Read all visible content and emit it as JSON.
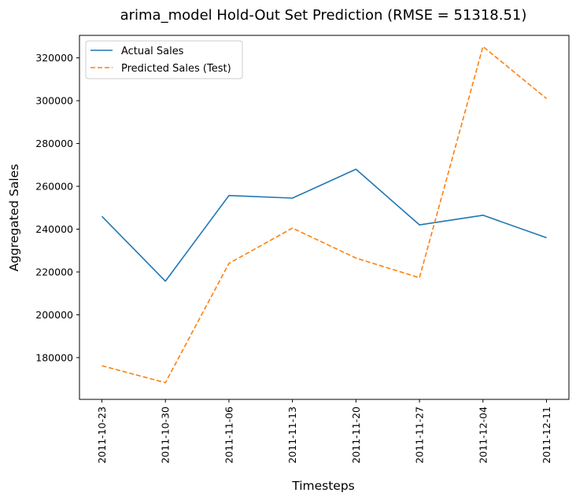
{
  "chart_data": {
    "type": "line",
    "title": "arima_model Hold-Out Set Prediction (RMSE = 51318.51)",
    "xlabel": "Timesteps",
    "ylabel": "Aggregated Sales",
    "categories": [
      "2011-10-23",
      "2011-10-30",
      "2011-11-06",
      "2011-11-13",
      "2011-11-20",
      "2011-11-27",
      "2011-12-04",
      "2011-12-11"
    ],
    "yticks": [
      180000,
      200000,
      220000,
      240000,
      260000,
      280000,
      300000,
      320000
    ],
    "ylim": [
      160500,
      330500
    ],
    "grid": false,
    "legend_position": "top-left",
    "series": [
      {
        "name": "Actual Sales",
        "color": "#1f77b4",
        "style": "solid",
        "values": [
          246000,
          215700,
          255700,
          254500,
          268000,
          242000,
          246500,
          236000
        ]
      },
      {
        "name": "Predicted Sales (Test)",
        "color": "#ff7f0e",
        "style": "dashed",
        "values": [
          176200,
          168300,
          224000,
          240500,
          226500,
          217300,
          325300,
          301000
        ]
      }
    ]
  }
}
